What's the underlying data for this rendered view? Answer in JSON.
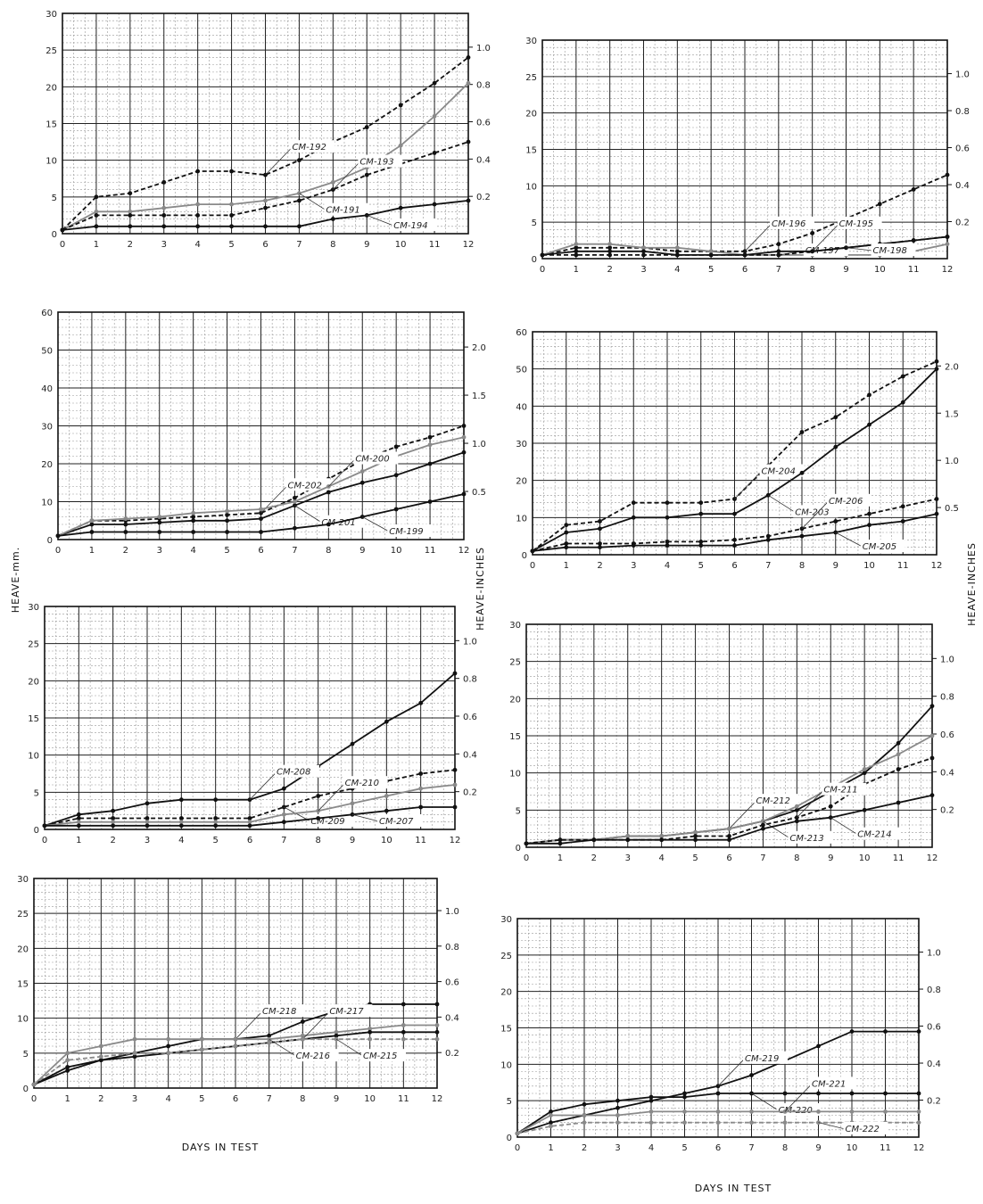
{
  "axes": {
    "left_ylabel": "HEAVE-mm.",
    "center_ylabel": "HEAVE-INCHES",
    "right_ylabel": "HEAVE-INCHES",
    "xlabel_left": "DAYS IN TEST",
    "xlabel_right": "DAYS IN TEST"
  },
  "chart_data": [
    {
      "type": "line",
      "xlim": [
        0,
        12
      ],
      "ylim": [
        0,
        30
      ],
      "yticks": [
        5,
        10,
        15,
        20,
        25,
        30
      ],
      "xticks": [
        0,
        1,
        2,
        3,
        4,
        5,
        6,
        7,
        8,
        9,
        10,
        11,
        12
      ],
      "yright_ticks": [
        0.2,
        0.4,
        0.6,
        0.8,
        1.0
      ],
      "x": [
        0,
        1,
        2,
        3,
        4,
        5,
        6,
        7,
        8,
        9,
        10,
        11,
        12
      ],
      "series": [
        {
          "name": "CM-192",
          "values": [
            0.5,
            5,
            5.5,
            7,
            8.5,
            8.5,
            8,
            10,
            12.5,
            14.5,
            17.5,
            20.5,
            24
          ],
          "dashed": true,
          "gray": false
        },
        {
          "name": "CM-191",
          "values": [
            0.5,
            3,
            3,
            3.5,
            4,
            4,
            4.5,
            5.5,
            7,
            9,
            12,
            16,
            20.5
          ],
          "dashed": false,
          "gray": true
        },
        {
          "name": "CM-193",
          "values": [
            0.5,
            2.5,
            2.5,
            2.5,
            2.5,
            2.5,
            3.5,
            4.5,
            6,
            8,
            9.5,
            11,
            12.5
          ],
          "dashed": true,
          "gray": false
        },
        {
          "name": "CM-194",
          "values": [
            0.5,
            1,
            1,
            1,
            1,
            1,
            1,
            1,
            2,
            2.5,
            3.5,
            4,
            4.5
          ],
          "dashed": false,
          "gray": false
        }
      ]
    },
    {
      "type": "line",
      "xlim": [
        0,
        12
      ],
      "ylim": [
        0,
        30
      ],
      "yticks": [
        5,
        10,
        15,
        20,
        25,
        30
      ],
      "xticks": [
        0,
        1,
        2,
        3,
        4,
        5,
        6,
        7,
        8,
        9,
        10,
        11,
        12
      ],
      "yright_ticks": [
        0.2,
        0.4,
        0.6,
        0.8,
        1.0
      ],
      "x": [
        0,
        1,
        2,
        3,
        4,
        5,
        6,
        7,
        8,
        9,
        10,
        11,
        12
      ],
      "series": [
        {
          "name": "CM-196",
          "values": [
            0.5,
            1.5,
            1.5,
            1.5,
            1,
            1,
            1,
            2,
            3.5,
            5.5,
            7.5,
            9.5,
            11.5
          ],
          "dashed": true,
          "gray": false
        },
        {
          "name": "CM-197",
          "values": [
            0.5,
            2,
            2,
            1.5,
            1.5,
            1,
            0.5,
            0.5,
            0.5,
            0.5,
            0.5,
            1,
            2
          ],
          "dashed": false,
          "gray": true
        },
        {
          "name": "CM-195",
          "values": [
            0.5,
            1,
            1,
            1,
            0.5,
            0.5,
            0.5,
            1,
            1,
            1.5,
            2,
            2.5,
            3
          ],
          "dashed": false,
          "gray": false
        },
        {
          "name": "CM-198",
          "values": [
            0.5,
            0.5,
            0.5,
            0.5,
            0.5,
            0.5,
            0.5,
            0.5,
            1,
            1.5,
            2,
            2.5,
            3
          ],
          "dashed": true,
          "gray": false
        }
      ]
    },
    {
      "type": "line",
      "xlim": [
        0,
        12
      ],
      "ylim": [
        0,
        60
      ],
      "yticks": [
        10,
        20,
        30,
        40,
        50,
        60
      ],
      "xticks": [
        0,
        1,
        2,
        3,
        4,
        5,
        6,
        7,
        8,
        9,
        10,
        11,
        12
      ],
      "yright_ticks": [
        0.5,
        1.0,
        1.5,
        2.0
      ],
      "x": [
        0,
        1,
        2,
        3,
        4,
        5,
        6,
        7,
        8,
        9,
        10,
        11,
        12
      ],
      "series": [
        {
          "name": "CM-202",
          "values": [
            1,
            5,
            5,
            5.5,
            6,
            6.5,
            7,
            11,
            16,
            21,
            24.5,
            27,
            30
          ],
          "dashed": true,
          "gray": false
        },
        {
          "name": "CM-201",
          "values": [
            1,
            4,
            4,
            4.5,
            5,
            5,
            5.5,
            9,
            12.5,
            15,
            17,
            20,
            23
          ],
          "dashed": false,
          "gray": false
        },
        {
          "name": "CM-200",
          "values": [
            1,
            5,
            5.5,
            6,
            7,
            7.5,
            8,
            10,
            14,
            18,
            22,
            25,
            27
          ],
          "dashed": false,
          "gray": true
        },
        {
          "name": "CM-199",
          "values": [
            1,
            2,
            2,
            2,
            2,
            2,
            2,
            3,
            4,
            6,
            8,
            10,
            12
          ],
          "dashed": false,
          "gray": false
        }
      ]
    },
    {
      "type": "line",
      "xlim": [
        0,
        12
      ],
      "ylim": [
        0,
        60
      ],
      "yticks": [
        10,
        20,
        30,
        40,
        50,
        60
      ],
      "xticks": [
        0,
        1,
        2,
        3,
        4,
        5,
        6,
        7,
        8,
        9,
        10,
        11,
        12
      ],
      "yright_ticks": [
        0.5,
        1.0,
        1.5,
        2.0
      ],
      "x": [
        0,
        1,
        2,
        3,
        4,
        5,
        6,
        7,
        8,
        9,
        10,
        11,
        12
      ],
      "series": [
        {
          "name": "CM-204",
          "values": [
            1,
            8,
            9,
            14,
            14,
            14,
            15,
            24,
            33,
            37,
            43,
            48,
            52
          ],
          "dashed": true,
          "gray": false
        },
        {
          "name": "CM-203",
          "values": [
            1,
            6,
            7,
            10,
            10,
            11,
            11,
            16,
            22,
            29,
            35,
            41,
            50
          ],
          "dashed": false,
          "gray": false
        },
        {
          "name": "CM-206",
          "values": [
            1,
            3,
            3,
            3,
            3.5,
            3.5,
            4,
            5,
            7,
            9,
            11,
            13,
            15
          ],
          "dashed": true,
          "gray": false
        },
        {
          "name": "CM-205",
          "values": [
            1,
            2,
            2,
            2.5,
            2.5,
            2.5,
            2.5,
            4,
            5,
            6,
            8,
            9,
            11
          ],
          "dashed": false,
          "gray": false
        }
      ]
    },
    {
      "type": "line",
      "xlim": [
        0,
        12
      ],
      "ylim": [
        0,
        30
      ],
      "yticks": [
        5,
        10,
        15,
        20,
        25,
        30
      ],
      "xticks": [
        0,
        1,
        2,
        3,
        4,
        5,
        6,
        7,
        8,
        9,
        10,
        11,
        12
      ],
      "yright_ticks": [
        0.2,
        0.4,
        0.6,
        0.8,
        1.0
      ],
      "x": [
        0,
        1,
        2,
        3,
        4,
        5,
        6,
        7,
        8,
        9,
        10,
        11,
        12
      ],
      "series": [
        {
          "name": "CM-208",
          "values": [
            0.5,
            2,
            2.5,
            3.5,
            4,
            4,
            4,
            5.5,
            8.5,
            11.5,
            14.5,
            17,
            21
          ],
          "dashed": false,
          "gray": false
        },
        {
          "name": "CM-209",
          "values": [
            0.5,
            1.5,
            1.5,
            1.5,
            1.5,
            1.5,
            1.5,
            3,
            4.5,
            5.5,
            6.5,
            7.5,
            8
          ],
          "dashed": true,
          "gray": false
        },
        {
          "name": "CM-210",
          "values": [
            0.5,
            1,
            1,
            1,
            1,
            1,
            1,
            2,
            2.5,
            3.5,
            4.5,
            5.5,
            6
          ],
          "dashed": false,
          "gray": true
        },
        {
          "name": "CM-207",
          "values": [
            0.5,
            0.5,
            0.5,
            0.5,
            0.5,
            0.5,
            0.5,
            1,
            1.5,
            2,
            2.5,
            3,
            3
          ],
          "dashed": false,
          "gray": false
        }
      ]
    },
    {
      "type": "line",
      "xlim": [
        0,
        12
      ],
      "ylim": [
        0,
        30
      ],
      "yticks": [
        5,
        10,
        15,
        20,
        25,
        30
      ],
      "xticks": [
        0,
        1,
        2,
        3,
        4,
        5,
        6,
        7,
        8,
        9,
        10,
        11,
        12
      ],
      "yright_ticks": [
        0.2,
        0.4,
        0.6,
        0.8,
        1.0
      ],
      "x": [
        0,
        1,
        2,
        3,
        4,
        5,
        6,
        7,
        8,
        9,
        10,
        11,
        12
      ],
      "series": [
        {
          "name": "CM-212",
          "values": [
            0.5,
            1,
            1,
            1.5,
            1.5,
            2,
            2.5,
            3.5,
            5,
            7.5,
            10,
            14,
            19
          ],
          "dashed": false,
          "gray": false
        },
        {
          "name": "CM-213",
          "values": [
            0.5,
            1,
            1,
            1.5,
            1.5,
            2,
            2.5,
            3.5,
            5.5,
            8,
            10.5,
            12.5,
            15
          ],
          "dashed": false,
          "gray": true
        },
        {
          "name": "CM-211",
          "values": [
            0.5,
            1,
            1,
            1,
            1,
            1.5,
            1.5,
            3,
            4,
            5.5,
            8.5,
            10.5,
            12
          ],
          "dashed": true,
          "gray": false
        },
        {
          "name": "CM-214",
          "values": [
            0.5,
            0.5,
            1,
            1,
            1,
            1,
            1,
            2.5,
            3.5,
            4,
            5,
            6,
            7
          ],
          "dashed": false,
          "gray": false
        }
      ]
    },
    {
      "type": "line",
      "xlim": [
        0,
        12
      ],
      "ylim": [
        0,
        30
      ],
      "yticks": [
        5,
        10,
        15,
        20,
        25,
        30
      ],
      "xticks": [
        0,
        1,
        2,
        3,
        4,
        5,
        6,
        7,
        8,
        9,
        10,
        11,
        12
      ],
      "yright_ticks": [
        0.2,
        0.4,
        0.6,
        0.8,
        1.0
      ],
      "x": [
        0,
        1,
        2,
        3,
        4,
        5,
        6,
        7,
        8,
        9,
        10,
        11,
        12
      ],
      "series": [
        {
          "name": "CM-218",
          "values": [
            0.5,
            2.5,
            4,
            5,
            6,
            7,
            7,
            7.5,
            9.5,
            11,
            12,
            12,
            12
          ],
          "dashed": false,
          "gray": false
        },
        {
          "name": "CM-216",
          "values": [
            0.5,
            5,
            6,
            7,
            7,
            7,
            7,
            7,
            7.5,
            8,
            8.5,
            9,
            9
          ],
          "dashed": false,
          "gray": true
        },
        {
          "name": "CM-217",
          "values": [
            0.5,
            3,
            4,
            4.5,
            5,
            5.5,
            6,
            6.5,
            7,
            7.5,
            8,
            8,
            8
          ],
          "dashed": false,
          "gray": false
        },
        {
          "name": "CM-215",
          "values": [
            0.5,
            4,
            4.5,
            5,
            5,
            5.5,
            6,
            6.5,
            7,
            7,
            7,
            7,
            7
          ],
          "dashed": true,
          "gray": true
        }
      ]
    },
    {
      "type": "line",
      "xlim": [
        0,
        12
      ],
      "ylim": [
        0,
        30
      ],
      "yticks": [
        5,
        10,
        15,
        20,
        25,
        30
      ],
      "xticks": [
        0,
        1,
        2,
        3,
        4,
        5,
        6,
        7,
        8,
        9,
        10,
        11,
        12
      ],
      "yright_ticks": [
        0.2,
        0.4,
        0.6,
        0.8,
        1.0
      ],
      "x": [
        0,
        1,
        2,
        3,
        4,
        5,
        6,
        7,
        8,
        9,
        10,
        11,
        12
      ],
      "series": [
        {
          "name": "CM-219",
          "values": [
            0.5,
            2,
            3,
            4,
            5,
            6,
            7,
            8.5,
            10.5,
            12.5,
            14.5,
            14.5,
            14.5
          ],
          "dashed": false,
          "gray": false
        },
        {
          "name": "CM-220",
          "values": [
            0.5,
            3.5,
            4.5,
            5,
            5.5,
            5.5,
            6,
            6,
            6,
            6,
            6,
            6,
            6
          ],
          "dashed": false,
          "gray": false
        },
        {
          "name": "CM-221",
          "values": [
            0.5,
            3,
            3,
            3,
            3.5,
            3.5,
            3.5,
            3.5,
            3.5,
            3.5,
            3.5,
            3.5,
            3.5
          ],
          "dashed": false,
          "gray": true
        },
        {
          "name": "CM-222",
          "values": [
            0.5,
            1.5,
            2,
            2,
            2,
            2,
            2,
            2,
            2,
            2,
            2,
            2,
            2
          ],
          "dashed": true,
          "gray": true
        }
      ]
    }
  ]
}
